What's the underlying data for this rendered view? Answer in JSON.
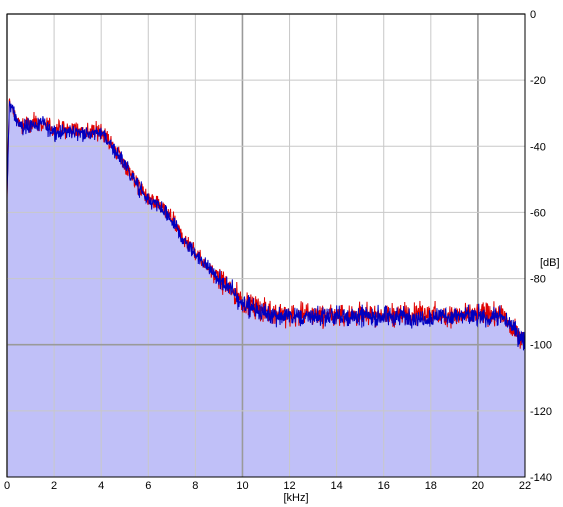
{
  "chart_data": {
    "type": "area",
    "title": "",
    "xlabel": "[kHz]",
    "ylabel": "[dB]",
    "xlim": [
      0,
      22
    ],
    "ylim": [
      -140,
      0
    ],
    "x_ticks": [
      "0",
      "2",
      "4",
      "6",
      "8",
      "10",
      "12",
      "14",
      "16",
      "18",
      "20",
      "22"
    ],
    "y_ticks": [
      "0",
      "-20",
      "-40",
      "-60",
      "-80",
      "-100",
      "-120",
      "-140"
    ],
    "grid": true,
    "legend": "none",
    "colors": {
      "fill": "#c0c0f8",
      "series_1": "#e00000",
      "series_2": "#0000c0",
      "grid_major": "#9a9a9a",
      "grid_minor": "#c8c8c8",
      "frame": "#000000"
    },
    "envelope": {
      "x": [
        0,
        0.1,
        0.3,
        0.6,
        1.0,
        1.5,
        2.0,
        2.5,
        3.0,
        3.5,
        4.0,
        4.5,
        5.0,
        5.5,
        6.0,
        6.5,
        7.0,
        7.5,
        8.0,
        8.5,
        9.0,
        9.5,
        10.0,
        11,
        12,
        13,
        14,
        15,
        16,
        17,
        18,
        19,
        20,
        21,
        22
      ],
      "y": [
        -56,
        -26,
        -30,
        -34,
        -33,
        -33,
        -35,
        -35,
        -35,
        -36,
        -35,
        -40,
        -45,
        -51,
        -56,
        -58,
        -62,
        -68,
        -72,
        -76,
        -80,
        -83,
        -87,
        -90,
        -91,
        -91,
        -91,
        -91,
        -91,
        -91,
        -91,
        -91,
        -91,
        -91,
        -99
      ]
    },
    "series": [
      {
        "jitter": 5.0
      },
      {
        "jitter": 4.5
      }
    ]
  }
}
